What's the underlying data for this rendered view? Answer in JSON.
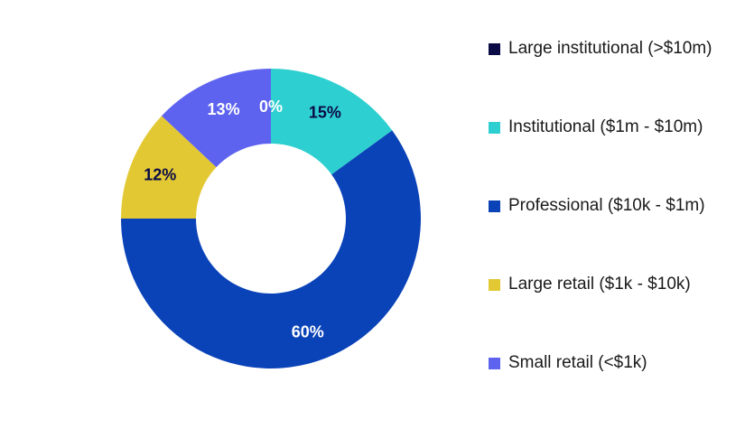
{
  "chart_data": {
    "type": "pie",
    "donut": true,
    "slices": [
      {
        "name": "Large institutional (>$10m)",
        "value": 0,
        "label": "0%",
        "color": "#0b0b45"
      },
      {
        "name": "Institutional ($1m - $10m)",
        "value": 15,
        "label": "15%",
        "color": "#2ecfd0"
      },
      {
        "name": "Professional ($10k - $1m)",
        "value": 60,
        "label": "60%",
        "color": "#0a43b8"
      },
      {
        "name": "Large retail ($1k - $10k)",
        "value": 12,
        "label": "12%",
        "color": "#e2c833"
      },
      {
        "name": "Small retail (<$1k)",
        "value": 13,
        "label": "13%",
        "color": "#5e63ef"
      }
    ],
    "label_colors": [
      "#ffffff",
      "#0b0b45",
      "#ffffff",
      "#0b0b45",
      "#ffffff"
    ],
    "legend_position": "right"
  }
}
